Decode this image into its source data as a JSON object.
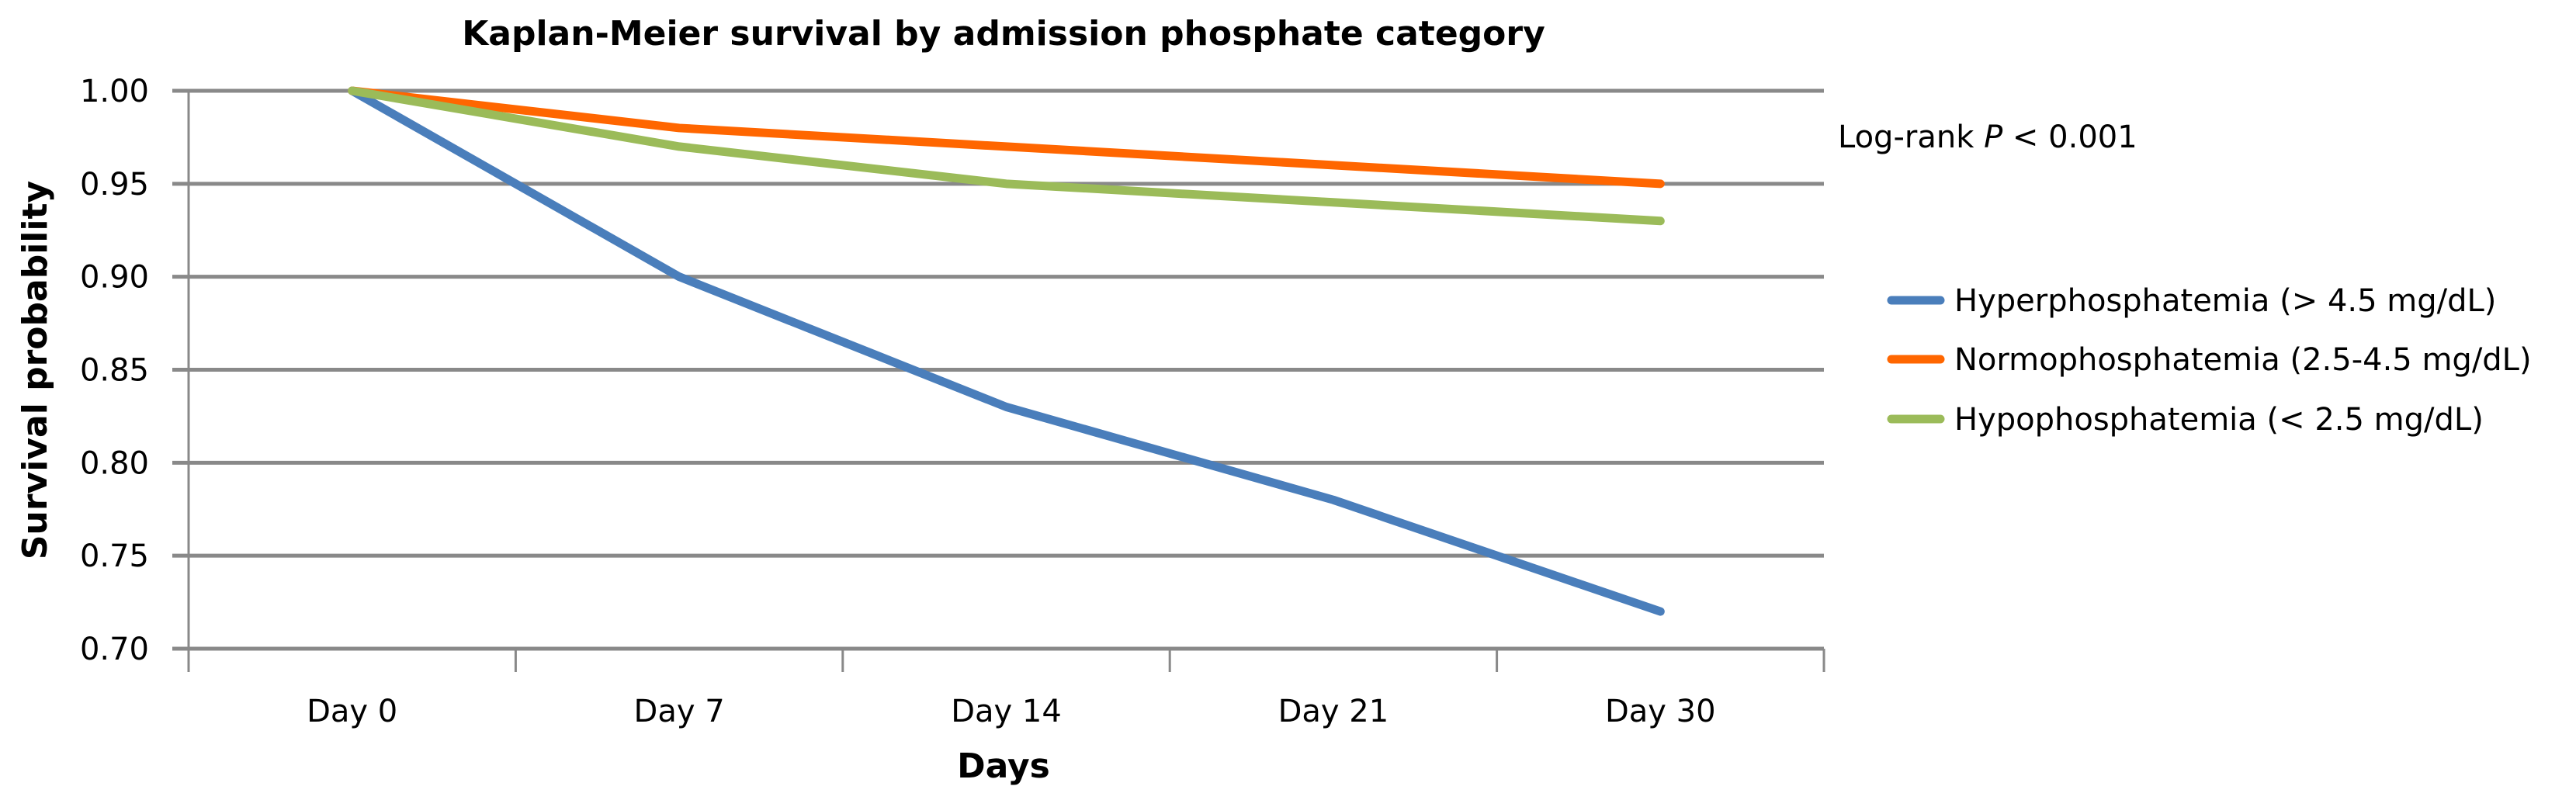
{
  "chart_data": {
    "type": "line",
    "title": "Kaplan-Meier survival by admission phosphate category",
    "xlabel": "Days",
    "ylabel": "Survival probability",
    "categories": [
      "Day 0",
      "Day 7",
      "Day 14",
      "Day 21",
      "Day 30"
    ],
    "ylim": [
      0.7,
      1.0
    ],
    "yticks": [
      "1.00",
      "0.95",
      "0.90",
      "0.85",
      "0.80",
      "0.75",
      "0.70"
    ],
    "ytick_values": [
      1.0,
      0.95,
      0.9,
      0.85,
      0.8,
      0.75,
      0.7
    ],
    "grid": true,
    "legend_position": "right",
    "annotation": {
      "prefix": "Log-rank ",
      "italic": "P",
      "suffix": " < 0.001"
    },
    "series": [
      {
        "name": "Hyperphosphatemia (> 4.5 mg/dL)",
        "color": "#4a7ebb",
        "values": [
          1.0,
          0.9,
          0.83,
          0.78,
          0.72
        ]
      },
      {
        "name": "Normophosphatemia (2.5-4.5 mg/dL)",
        "color": "#ff6600",
        "values": [
          1.0,
          0.98,
          0.97,
          0.96,
          0.95
        ]
      },
      {
        "name": "Hypophosphatemia (< 2.5 mg/dL)",
        "color": "#9bbb59",
        "values": [
          1.0,
          0.97,
          0.95,
          0.94,
          0.93
        ]
      }
    ]
  }
}
